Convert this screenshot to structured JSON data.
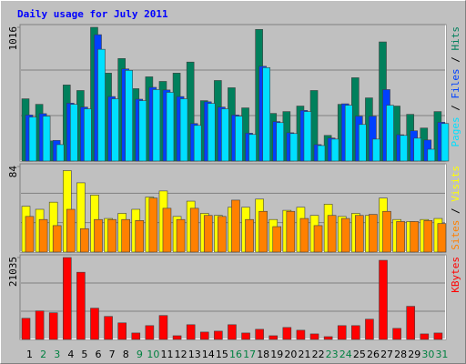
{
  "chart_data": [
    {
      "type": "bar",
      "title": "Daily usage for July 2011",
      "ylim": [
        0,
        1016
      ],
      "yticks": [
        1016
      ],
      "legend_separator": " / ",
      "series": [
        {
          "name": "Hits",
          "color": "#00805c",
          "values": [
            473,
            431,
            153,
            578,
            536,
            1016,
            668,
            779,
            550,
            640,
            605,
            668,
            752,
            459,
            612,
            557,
            404,
            1000,
            362,
            376,
            418,
            536,
            195,
            431,
            633,
            480,
            905,
            418,
            355,
            251,
            376
          ]
        },
        {
          "name": "Files",
          "color": "#0040ff",
          "values": [
            350,
            360,
            157,
            440,
            410,
            960,
            490,
            700,
            470,
            560,
            540,
            490,
            285,
            450,
            410,
            350,
            212,
            720,
            300,
            215,
            385,
            125,
            175,
            435,
            341,
            341,
            543,
            200,
            230,
            160,
            295
          ]
        },
        {
          "name": "Pages",
          "color": "#00e0ff",
          "values": [
            334,
            341,
            125,
            431,
            397,
            849,
            473,
            689,
            459,
            543,
            522,
            473,
            271,
            438,
            397,
            341,
            202,
            710,
            292,
            209,
            376,
            118,
            167,
            424,
            278,
            167,
            424,
            195,
            174,
            90,
            285
          ]
        }
      ]
    },
    {
      "type": "bar",
      "ylim": [
        0,
        84
      ],
      "yticks": [
        84
      ],
      "legend_separator": " / ",
      "series": [
        {
          "name": "Visits",
          "color": "#ffff00",
          "values": [
            45,
            42,
            49,
            80,
            68,
            56,
            33,
            38,
            42,
            54,
            60,
            35,
            50,
            38,
            36,
            44,
            44,
            52,
            32,
            41,
            44,
            36,
            47,
            35,
            38,
            36,
            53,
            32,
            30,
            32,
            33
          ]
        },
        {
          "name": "Sites",
          "color": "#ff8000",
          "values": [
            35,
            32,
            26,
            42,
            23,
            32,
            32,
            32,
            31,
            53,
            43,
            32,
            43,
            36,
            35,
            51,
            32,
            40,
            25,
            40,
            33,
            26,
            36,
            33,
            36,
            37,
            40,
            30,
            30,
            31,
            28
          ]
        }
      ]
    },
    {
      "type": "bar",
      "ylim": [
        0,
        21035
      ],
      "yticks": [
        21035
      ],
      "series": [
        {
          "name": "KBytes",
          "color": "#ff0000",
          "values": [
            5435,
            7326,
            6853,
            21035,
            17253,
            8035,
            5908,
            4254,
            1654,
            3545,
            6145,
            945,
            3781,
            1891,
            2127,
            3781,
            1654,
            2600,
            945,
            3072,
            2363,
            1418,
            709,
            3545,
            3545,
            5199,
            20326,
            2836,
            8508,
            1418,
            1654
          ]
        }
      ],
      "categories": [
        "1",
        "2",
        "3",
        "4",
        "5",
        "6",
        "7",
        "8",
        "9",
        "10",
        "11",
        "12",
        "13",
        "14",
        "15",
        "16",
        "17",
        "18",
        "19",
        "20",
        "21",
        "22",
        "23",
        "24",
        "25",
        "26",
        "27",
        "28",
        "29",
        "30",
        "31"
      ],
      "category_colors": [
        "#000000",
        "#008040",
        "#008040",
        "#000000",
        "#000000",
        "#000000",
        "#000000",
        "#000000",
        "#008040",
        "#008040",
        "#000000",
        "#000000",
        "#000000",
        "#000000",
        "#000000",
        "#008040",
        "#008040",
        "#000000",
        "#000000",
        "#000000",
        "#000000",
        "#000000",
        "#008040",
        "#008040",
        "#000000",
        "#000000",
        "#000000",
        "#000000",
        "#000000",
        "#008040",
        "#008040"
      ]
    }
  ]
}
